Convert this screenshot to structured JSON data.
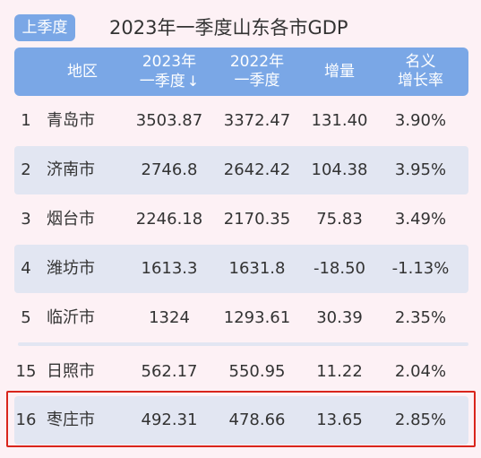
{
  "badge": "上季度",
  "title": "2023年一季度山东各市GDP",
  "header": {
    "region": "地区",
    "v23_line1": "2023年",
    "v23_line2": "一季度",
    "sort_arrow": "↓",
    "v22_line1": "2022年",
    "v22_line2": "一季度",
    "increase": "增量",
    "rate_line1": "名义",
    "rate_line2": "增长率"
  },
  "rows": [
    {
      "rank": "1",
      "city": "青岛市",
      "v23": "3503.87",
      "v22": "3372.47",
      "increase": "131.40",
      "rate": "3.90%"
    },
    {
      "rank": "2",
      "city": "济南市",
      "v23": "2746.8",
      "v22": "2642.42",
      "increase": "104.38",
      "rate": "3.95%"
    },
    {
      "rank": "3",
      "city": "烟台市",
      "v23": "2246.18",
      "v22": "2170.35",
      "increase": "75.83",
      "rate": "3.49%"
    },
    {
      "rank": "4",
      "city": "潍坊市",
      "v23": "1613.3",
      "v22": "1631.8",
      "increase": "-18.50",
      "rate": "-1.13%"
    },
    {
      "rank": "5",
      "city": "临沂市",
      "v23": "1324",
      "v22": "1293.61",
      "increase": "30.39",
      "rate": "2.35%"
    },
    {
      "rank": "15",
      "city": "日照市",
      "v23": "562.17",
      "v22": "550.95",
      "increase": "11.22",
      "rate": "2.04%"
    },
    {
      "rank": "16",
      "city": "枣庄市",
      "v23": "492.31",
      "v22": "478.66",
      "increase": "13.65",
      "rate": "2.85%"
    }
  ],
  "colors": {
    "header_bg": "#7aa7e6",
    "alt_row_bg": "#e2e6f2",
    "page_bg": "#fdf1f5",
    "highlight_border": "#d9251c"
  }
}
